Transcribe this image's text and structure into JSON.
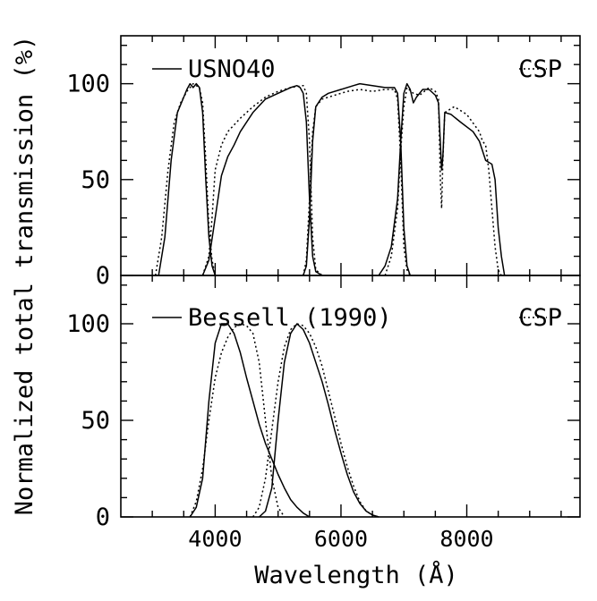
{
  "chart_data": [
    {
      "type": "line",
      "xlabel": "Wavelength (Å)",
      "ylabel": "Normalized total transmission (%)",
      "xlim": [
        2500,
        9800
      ],
      "ylim": [
        0,
        125
      ],
      "x_ticks": [
        4000,
        6000,
        8000
      ],
      "y_ticks": [
        0,
        50,
        100
      ],
      "grid": false,
      "legend_position": "top",
      "series": [
        {
          "name": "USNO40",
          "style": "solid",
          "bands": [
            [
              [
                3100,
                0
              ],
              [
                3200,
                20
              ],
              [
                3300,
                60
              ],
              [
                3400,
                85
              ],
              [
                3500,
                93
              ],
              [
                3550,
                97
              ],
              [
                3600,
                100
              ],
              [
                3650,
                98
              ],
              [
                3700,
                100
              ],
              [
                3750,
                98
              ],
              [
                3800,
                85
              ],
              [
                3850,
                50
              ],
              [
                3900,
                20
              ],
              [
                3950,
                5
              ],
              [
                4000,
                0
              ]
            ],
            [
              [
                3800,
                0
              ],
              [
                3900,
                8
              ],
              [
                4000,
                30
              ],
              [
                4100,
                52
              ],
              [
                4200,
                62
              ],
              [
                4300,
                68
              ],
              [
                4400,
                75
              ],
              [
                4600,
                85
              ],
              [
                4800,
                92
              ],
              [
                5000,
                95
              ],
              [
                5200,
                98
              ],
              [
                5300,
                99
              ],
              [
                5350,
                98
              ],
              [
                5400,
                95
              ],
              [
                5450,
                80
              ],
              [
                5500,
                40
              ],
              [
                5550,
                10
              ],
              [
                5600,
                2
              ],
              [
                5700,
                0
              ]
            ],
            [
              [
                5400,
                0
              ],
              [
                5450,
                5
              ],
              [
                5500,
                30
              ],
              [
                5550,
                70
              ],
              [
                5600,
                88
              ],
              [
                5700,
                93
              ],
              [
                5800,
                95
              ],
              [
                6000,
                97
              ],
              [
                6200,
                99
              ],
              [
                6300,
                100
              ],
              [
                6500,
                99
              ],
              [
                6700,
                98
              ],
              [
                6850,
                98
              ],
              [
                6900,
                95
              ],
              [
                6950,
                70
              ],
              [
                7000,
                25
              ],
              [
                7050,
                5
              ],
              [
                7100,
                0
              ]
            ],
            [
              [
                6600,
                0
              ],
              [
                6700,
                5
              ],
              [
                6800,
                15
              ],
              [
                6900,
                40
              ],
              [
                6950,
                70
              ],
              [
                7000,
                95
              ],
              [
                7050,
                100
              ],
              [
                7100,
                97
              ],
              [
                7150,
                90
              ],
              [
                7200,
                93
              ],
              [
                7300,
                97
              ],
              [
                7400,
                97
              ],
              [
                7500,
                94
              ],
              [
                7550,
                90
              ],
              [
                7600,
                55
              ],
              [
                7620,
                62
              ],
              [
                7650,
                85
              ],
              [
                7750,
                84
              ],
              [
                7900,
                80
              ],
              [
                8100,
                75
              ],
              [
                8200,
                70
              ],
              [
                8300,
                60
              ],
              [
                8400,
                58
              ],
              [
                8450,
                50
              ],
              [
                8500,
                25
              ],
              [
                8550,
                10
              ],
              [
                8600,
                0
              ]
            ]
          ]
        },
        {
          "name": "CSP",
          "style": "dotted",
          "bands": [
            [
              [
                3050,
                0
              ],
              [
                3150,
                20
              ],
              [
                3250,
                55
              ],
              [
                3350,
                80
              ],
              [
                3450,
                90
              ],
              [
                3550,
                96
              ],
              [
                3650,
                100
              ],
              [
                3750,
                98
              ],
              [
                3800,
                90
              ],
              [
                3850,
                60
              ],
              [
                3900,
                25
              ],
              [
                3950,
                8
              ],
              [
                4000,
                0
              ]
            ],
            [
              [
                3800,
                0
              ],
              [
                3900,
                10
              ],
              [
                3950,
                30
              ],
              [
                4000,
                55
              ],
              [
                4100,
                68
              ],
              [
                4200,
                75
              ],
              [
                4400,
                82
              ],
              [
                4600,
                88
              ],
              [
                4800,
                93
              ],
              [
                5000,
                96
              ],
              [
                5200,
                98
              ],
              [
                5400,
                99
              ],
              [
                5450,
                95
              ],
              [
                5500,
                70
              ],
              [
                5550,
                20
              ],
              [
                5600,
                3
              ],
              [
                5700,
                0
              ]
            ],
            [
              [
                5400,
                0
              ],
              [
                5450,
                8
              ],
              [
                5500,
                40
              ],
              [
                5550,
                75
              ],
              [
                5600,
                88
              ],
              [
                5700,
                92
              ],
              [
                5900,
                94
              ],
              [
                6100,
                96
              ],
              [
                6300,
                97
              ],
              [
                6500,
                96
              ],
              [
                6700,
                97
              ],
              [
                6850,
                97
              ],
              [
                6900,
                92
              ],
              [
                6950,
                60
              ],
              [
                7000,
                15
              ],
              [
                7050,
                3
              ],
              [
                7100,
                0
              ]
            ],
            [
              [
                6700,
                0
              ],
              [
                6800,
                10
              ],
              [
                6900,
                35
              ],
              [
                6950,
                65
              ],
              [
                7000,
                88
              ],
              [
                7050,
                98
              ],
              [
                7150,
                95
              ],
              [
                7250,
                94
              ],
              [
                7400,
                98
              ],
              [
                7500,
                96
              ],
              [
                7550,
                92
              ],
              [
                7580,
                50
              ],
              [
                7600,
                35
              ],
              [
                7620,
                60
              ],
              [
                7650,
                85
              ],
              [
                7800,
                88
              ],
              [
                8000,
                84
              ],
              [
                8200,
                75
              ],
              [
                8250,
                70
              ],
              [
                8300,
                68
              ],
              [
                8350,
                55
              ],
              [
                8400,
                35
              ],
              [
                8450,
                15
              ],
              [
                8500,
                3
              ],
              [
                8550,
                0
              ]
            ]
          ]
        }
      ]
    },
    {
      "type": "line",
      "xlabel": "Wavelength (Å)",
      "ylabel": "Normalized total transmission (%)",
      "xlim": [
        2500,
        9800
      ],
      "ylim": [
        0,
        125
      ],
      "x_ticks": [
        4000,
        6000,
        8000
      ],
      "y_ticks": [
        0,
        50,
        100
      ],
      "grid": false,
      "legend_position": "top",
      "series": [
        {
          "name": "Bessell (1990)",
          "style": "solid",
          "bands": [
            [
              [
                3600,
                0
              ],
              [
                3700,
                5
              ],
              [
                3800,
                20
              ],
              [
                3900,
                60
              ],
              [
                4000,
                90
              ],
              [
                4100,
                100
              ],
              [
                4200,
                100
              ],
              [
                4300,
                95
              ],
              [
                4400,
                85
              ],
              [
                4500,
                72
              ],
              [
                4600,
                60
              ],
              [
                4700,
                48
              ],
              [
                4800,
                38
              ],
              [
                4900,
                30
              ],
              [
                5000,
                22
              ],
              [
                5100,
                15
              ],
              [
                5200,
                9
              ],
              [
                5300,
                5
              ],
              [
                5400,
                2
              ],
              [
                5500,
                0
              ]
            ],
            [
              [
                4700,
                0
              ],
              [
                4800,
                3
              ],
              [
                4900,
                15
              ],
              [
                5000,
                50
              ],
              [
                5100,
                80
              ],
              [
                5200,
                95
              ],
              [
                5300,
                100
              ],
              [
                5400,
                97
              ],
              [
                5500,
                90
              ],
              [
                5600,
                80
              ],
              [
                5700,
                70
              ],
              [
                5800,
                58
              ],
              [
                5900,
                45
              ],
              [
                6000,
                33
              ],
              [
                6100,
                22
              ],
              [
                6200,
                13
              ],
              [
                6300,
                7
              ],
              [
                6400,
                3
              ],
              [
                6500,
                1
              ],
              [
                6600,
                0
              ]
            ]
          ]
        },
        {
          "name": "CSP",
          "style": "dotted",
          "bands": [
            [
              [
                3600,
                0
              ],
              [
                3700,
                8
              ],
              [
                3800,
                25
              ],
              [
                3900,
                50
              ],
              [
                4000,
                72
              ],
              [
                4100,
                85
              ],
              [
                4200,
                93
              ],
              [
                4300,
                98
              ],
              [
                4400,
                100
              ],
              [
                4500,
                99
              ],
              [
                4600,
                95
              ],
              [
                4700,
                80
              ],
              [
                4800,
                50
              ],
              [
                4900,
                20
              ],
              [
                5000,
                5
              ],
              [
                5100,
                0
              ]
            ],
            [
              [
                4600,
                0
              ],
              [
                4700,
                5
              ],
              [
                4800,
                20
              ],
              [
                4900,
                45
              ],
              [
                5000,
                70
              ],
              [
                5100,
                88
              ],
              [
                5200,
                97
              ],
              [
                5300,
                100
              ],
              [
                5400,
                99
              ],
              [
                5500,
                95
              ],
              [
                5600,
                88
              ],
              [
                5700,
                78
              ],
              [
                5800,
                65
              ],
              [
                5900,
                52
              ],
              [
                6000,
                38
              ],
              [
                6100,
                26
              ],
              [
                6200,
                16
              ],
              [
                6300,
                8
              ],
              [
                6400,
                3
              ],
              [
                6500,
                1
              ],
              [
                6600,
                0
              ]
            ]
          ]
        }
      ]
    }
  ]
}
